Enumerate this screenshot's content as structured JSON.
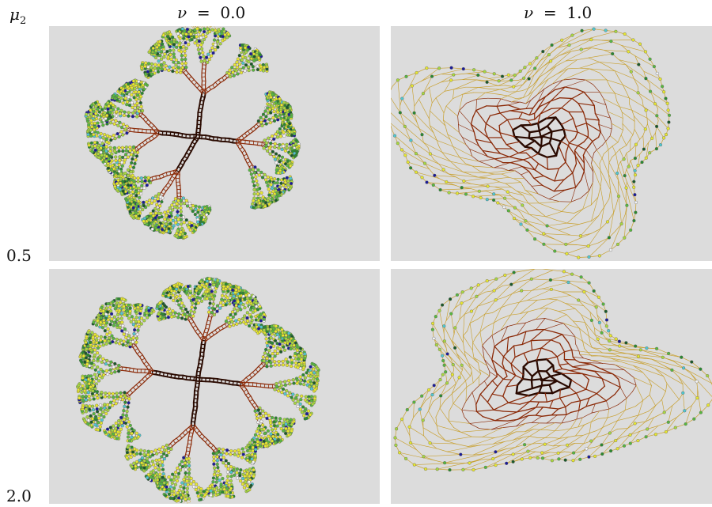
{
  "header": {
    "row_symbol": "μ",
    "row_subscript": "2",
    "columns": [
      {
        "symbol": "ν",
        "value": "0.0"
      },
      {
        "symbol": "ν",
        "value": "1.0"
      }
    ]
  },
  "rows": [
    {
      "value": "0.5"
    },
    {
      "value": "2.0"
    }
  ],
  "panels": [
    {
      "id": "p00",
      "kind": "tree",
      "seed": 11
    },
    {
      "id": "p01",
      "kind": "mesh",
      "seed": 23
    },
    {
      "id": "p10",
      "kind": "tree",
      "seed": 37
    },
    {
      "id": "p11",
      "kind": "mesh",
      "seed": 51
    }
  ],
  "colors": {
    "background": "#dcdcdc",
    "edge_trunk": "#2a0a00",
    "edge_mid": "#8b2a08",
    "edge_thin": "#c8a030",
    "node_palette": [
      "#e8e830",
      "#a8d840",
      "#58b840",
      "#2a8a30",
      "#1a5a2a",
      "#50c8d0",
      "#1a1a9a",
      "#f4f4f4"
    ]
  }
}
